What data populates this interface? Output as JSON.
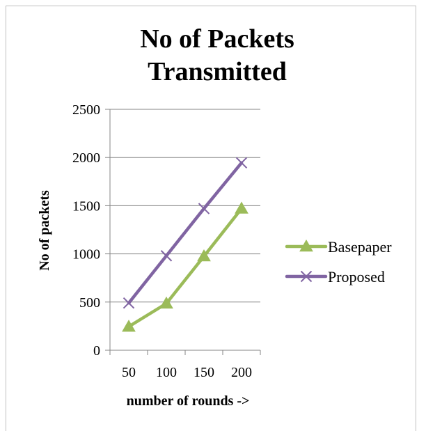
{
  "chart_data": {
    "type": "line",
    "title": "No of Packets Transmitted",
    "title_lines": [
      "No of Packets",
      "Transmitted"
    ],
    "xlabel": "number of rounds ->",
    "ylabel": "No of packets",
    "categories": [
      "50",
      "100",
      "150",
      "200"
    ],
    "ylim": [
      0,
      2500
    ],
    "yticks": [
      "0",
      "500",
      "1000",
      "1500",
      "2000",
      "2500"
    ],
    "grid": "horizontal",
    "legend_position": "right",
    "series": [
      {
        "name": "Basepaper",
        "values": [
          245,
          485,
          975,
          1470
        ],
        "color": "#9bbb59",
        "marker": "triangle"
      },
      {
        "name": "Proposed",
        "values": [
          490,
          980,
          1470,
          1945
        ],
        "color": "#8064a2",
        "marker": "x"
      }
    ]
  }
}
